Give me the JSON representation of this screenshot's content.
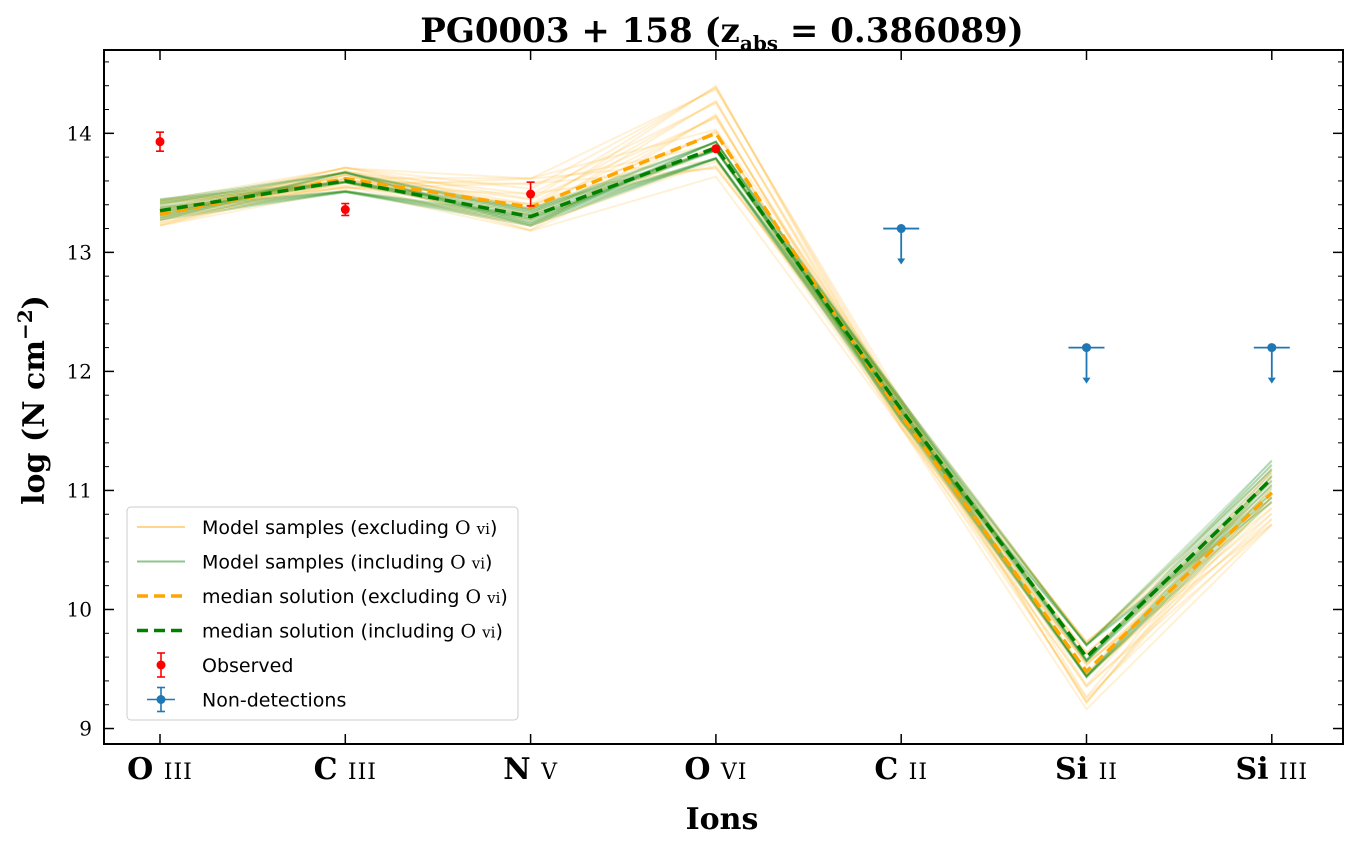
{
  "chart_data": {
    "type": "line",
    "title": {
      "main": "PG0003 + 158 (z",
      "sub": "abs",
      "rest": " = 0.386089)"
    },
    "xlabel": "Ions",
    "ylabel": {
      "main": "log (N cm",
      "sup": "−2",
      "close": ")"
    },
    "ylim": [
      8.87,
      14.7
    ],
    "yticks": [
      "9",
      "10",
      "11",
      "12",
      "13",
      "14"
    ],
    "categories": [
      {
        "element": "O",
        "ion": "III"
      },
      {
        "element": "C",
        "ion": "III"
      },
      {
        "element": "N",
        "ion": "V"
      },
      {
        "element": "O",
        "ion": "VI"
      },
      {
        "element": "C",
        "ion": "II"
      },
      {
        "element": "Si",
        "ion": "II"
      },
      {
        "element": "Si",
        "ion": "III"
      }
    ],
    "series": [
      {
        "name": "median solution (excluding O vi)",
        "color": "#ffa500",
        "style": "dashed",
        "values": [
          13.32,
          13.62,
          13.38,
          14.0,
          11.63,
          9.48,
          10.98
        ]
      },
      {
        "name": "median solution (including O vi)",
        "color": "#008000",
        "style": "dashed",
        "values": [
          13.35,
          13.6,
          13.3,
          13.88,
          11.68,
          9.6,
          11.1
        ]
      }
    ],
    "model_sample_bands": {
      "excluding": {
        "color": "#ffa500",
        "low": [
          13.22,
          13.52,
          13.17,
          13.62,
          11.52,
          9.15,
          10.7
        ],
        "high": [
          13.45,
          13.72,
          13.65,
          14.42,
          11.78,
          9.75,
          11.2
        ]
      },
      "including": {
        "color": "#008000",
        "low": [
          13.27,
          13.5,
          13.22,
          13.78,
          11.58,
          9.42,
          10.9
        ],
        "high": [
          13.46,
          13.73,
          13.38,
          13.98,
          11.78,
          9.8,
          11.28
        ]
      }
    },
    "observed": {
      "name": "Observed",
      "color": "#ff0000",
      "points": [
        {
          "x": "O III",
          "y": 13.93,
          "err": 0.08
        },
        {
          "x": "C III",
          "y": 13.36,
          "err": 0.05
        },
        {
          "x": "N V",
          "y": 13.49,
          "err": 0.1
        },
        {
          "x": "O VI",
          "y": 13.87,
          "err": 0.0
        }
      ]
    },
    "non_detections": {
      "name": "Non-detections",
      "color": "#1f77b4",
      "upper_limits": [
        {
          "x": "C II",
          "y": 13.2
        },
        {
          "x": "Si II",
          "y": 12.2
        },
        {
          "x": "Si III",
          "y": 12.2
        }
      ]
    },
    "legend": {
      "placement": "lower-left",
      "entries": [
        {
          "prefix": "Model samples (excluding ",
          "ion_el": "O",
          "ion_stage": "VI",
          "suffix": ")"
        },
        {
          "prefix": "Model samples (including ",
          "ion_el": "O",
          "ion_stage": "VI",
          "suffix": ")"
        },
        {
          "prefix": "median solution (excluding ",
          "ion_el": "O",
          "ion_stage": "VI",
          "suffix": ")"
        },
        {
          "prefix": "median solution (including ",
          "ion_el": "O",
          "ion_stage": "VI",
          "suffix": ")"
        },
        {
          "prefix": "Observed",
          "ion_el": "",
          "ion_stage": "",
          "suffix": ""
        },
        {
          "prefix": "Non-detections",
          "ion_el": "",
          "ion_stage": "",
          "suffix": ""
        }
      ]
    },
    "grid": false
  }
}
